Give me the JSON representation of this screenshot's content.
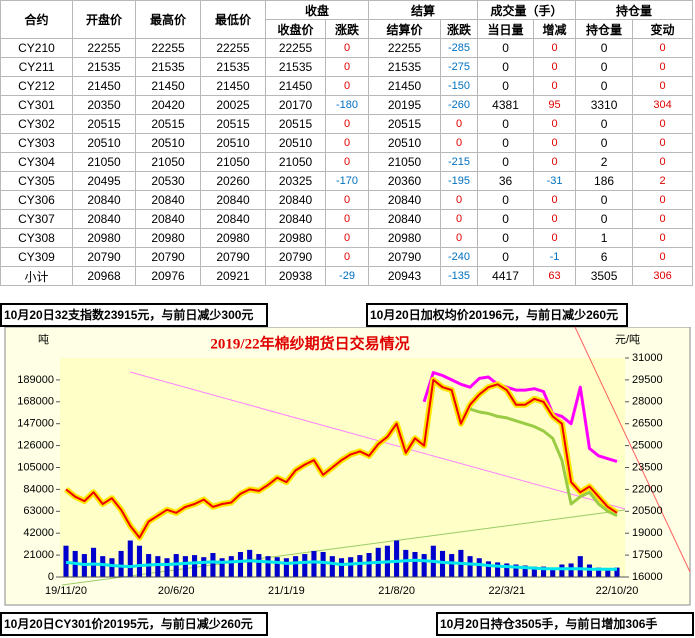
{
  "table": {
    "header_top": [
      "合约",
      "开盘价",
      "最高价",
      "最低价",
      "收盘",
      "结算",
      "成交量（手）",
      "持仓量"
    ],
    "header_sub": [
      "收盘价",
      "涨跌",
      "结算价",
      "涨跌",
      "当日量",
      "增减",
      "持仓量",
      "变动"
    ],
    "rows": [
      [
        "CY210",
        22255,
        22255,
        22255,
        22255,
        0,
        22255,
        -285,
        0,
        0,
        0,
        0
      ],
      [
        "CY211",
        21535,
        21535,
        21535,
        21535,
        0,
        21535,
        -275,
        0,
        0,
        0,
        0
      ],
      [
        "CY212",
        21450,
        21450,
        21450,
        21450,
        0,
        21450,
        -150,
        0,
        0,
        0,
        0
      ],
      [
        "CY301",
        20350,
        20420,
        20025,
        20170,
        -180,
        20195,
        -260,
        4381,
        95,
        3310,
        304
      ],
      [
        "CY302",
        20515,
        20515,
        20515,
        20515,
        0,
        20515,
        0,
        0,
        0,
        0,
        0
      ],
      [
        "CY303",
        20510,
        20510,
        20510,
        20510,
        0,
        20510,
        0,
        0,
        0,
        0,
        0
      ],
      [
        "CY304",
        21050,
        21050,
        21050,
        21050,
        0,
        21050,
        -215,
        0,
        0,
        2,
        0
      ],
      [
        "CY305",
        20495,
        20530,
        20260,
        20325,
        -170,
        20360,
        -195,
        36,
        -31,
        186,
        2
      ],
      [
        "CY306",
        20840,
        20840,
        20840,
        20840,
        0,
        20840,
        0,
        0,
        0,
        0,
        0
      ],
      [
        "CY307",
        20840,
        20840,
        20840,
        20840,
        0,
        20840,
        0,
        0,
        0,
        0,
        0
      ],
      [
        "CY308",
        20980,
        20980,
        20980,
        20980,
        0,
        20980,
        0,
        0,
        0,
        1,
        0
      ],
      [
        "CY309",
        20790,
        20790,
        20790,
        20790,
        0,
        20790,
        -240,
        0,
        -1,
        6,
        0
      ],
      [
        "小计",
        20968,
        20976,
        20921,
        20938,
        -29,
        20943,
        -135,
        4417,
        63,
        3505,
        306
      ]
    ]
  },
  "notes": [
    "10月20日32支指数23915元，与前日减少300元",
    "10月20日加权均价20196元，与前日减少260元",
    "10月20日CY301价20195元，与前日减少260元",
    "10月20日持仓3505手，与前日增加306手"
  ],
  "chart_data": {
    "type": "line",
    "title": "2019/22年棉纱期货日交易情况",
    "y_label": "吨",
    "y2_label": "元/吨",
    "categories": [
      "19/11/20",
      null,
      null,
      null,
      null,
      null,
      null,
      null,
      null,
      null,
      null,
      null,
      "20/6/20",
      null,
      null,
      null,
      null,
      null,
      null,
      null,
      null,
      null,
      null,
      null,
      "21/1/19",
      null,
      null,
      null,
      null,
      null,
      null,
      null,
      null,
      null,
      null,
      null,
      "21/8/20",
      null,
      null,
      null,
      null,
      null,
      null,
      null,
      null,
      null,
      null,
      null,
      "22/3/21",
      null,
      null,
      null,
      null,
      null,
      null,
      null,
      null,
      null,
      null,
      null,
      "22/10/20"
    ],
    "ylim": [
      0,
      210000
    ],
    "yticks": [
      0,
      21000,
      42000,
      63000,
      84000,
      105000,
      126000,
      147000,
      168000,
      189000
    ],
    "y2lim": [
      16000,
      31000
    ],
    "y2ticks": [
      16000,
      17500,
      19000,
      20500,
      22000,
      23500,
      25000,
      26500,
      28000,
      29500,
      31000
    ],
    "series": [
      {
        "type": "bar",
        "axis": "y",
        "color": "#0000cc",
        "values": [
          30000,
          25000,
          22000,
          28000,
          20000,
          18000,
          25000,
          35000,
          30000,
          22000,
          20000,
          18000,
          22000,
          20000,
          21000,
          19000,
          23000,
          18000,
          20000,
          24000,
          26000,
          22000,
          20000,
          19000,
          18000,
          20000,
          22000,
          25000,
          24000,
          20000,
          18000,
          19000,
          21000,
          23000,
          28000,
          30000,
          35000,
          26000,
          24000,
          22000,
          30000,
          25000,
          22000,
          26000,
          20000,
          18000,
          15000,
          14000,
          13000,
          12000,
          11000,
          10000,
          10000,
          9000,
          12000,
          13000,
          20000,
          12000,
          9000,
          8000,
          9000
        ]
      },
      {
        "type": "line",
        "axis": "y",
        "color": "#00e5ee",
        "values": [
          14000,
          13000,
          12000,
          12500,
          12000,
          11000,
          10500,
          10000,
          11000,
          11500,
          12000,
          12000,
          12500,
          13000,
          13500,
          14000,
          14500,
          14000,
          14500,
          15000,
          15500,
          15000,
          14500,
          14000,
          13000,
          13500,
          14000,
          14500,
          14000,
          13000,
          12000,
          12500,
          13000,
          13500,
          14000,
          14500,
          15000,
          15500,
          16000,
          15500,
          15000,
          14000,
          13500,
          13000,
          12500,
          12000,
          11000,
          10500,
          10000,
          9500,
          9000,
          8500,
          8000,
          8000,
          8000,
          8000,
          8000,
          7500,
          7500,
          7500,
          7500
        ]
      },
      {
        "type": "line",
        "axis": "y2",
        "color": "#ff00ff",
        "values": [
          null,
          null,
          null,
          null,
          null,
          null,
          null,
          null,
          null,
          null,
          null,
          null,
          null,
          null,
          null,
          null,
          null,
          null,
          null,
          null,
          null,
          null,
          null,
          null,
          null,
          null,
          null,
          null,
          null,
          null,
          null,
          null,
          null,
          null,
          null,
          null,
          null,
          null,
          null,
          28000,
          30000,
          29800,
          29500,
          29200,
          29000,
          29600,
          29700,
          29200,
          29000,
          28800,
          28800,
          28900,
          28700,
          27200,
          27000,
          26500,
          29000,
          24800,
          24300,
          24100,
          23915
        ]
      },
      {
        "type": "line",
        "axis": "y2",
        "color": "#ee0000",
        "halo": "#ffe600",
        "values": [
          22000,
          21500,
          21200,
          21800,
          21000,
          21400,
          20600,
          19500,
          18700,
          19800,
          20200,
          20600,
          20400,
          20800,
          21000,
          21300,
          20800,
          21000,
          21100,
          21700,
          22000,
          21900,
          22300,
          22800,
          22500,
          23300,
          23700,
          24000,
          23000,
          23500,
          24000,
          24400,
          24600,
          24300,
          25100,
          25600,
          26500,
          24500,
          25500,
          25000,
          29500,
          29000,
          28800,
          26500,
          27800,
          28500,
          29000,
          29200,
          28800,
          27800,
          27800,
          28200,
          28000,
          27000,
          26500,
          22500,
          21800,
          22200,
          21500,
          20800,
          20400
        ]
      },
      {
        "type": "line",
        "axis": "y2",
        "color": "#99cc44",
        "values": [
          null,
          null,
          null,
          null,
          null,
          null,
          null,
          null,
          null,
          null,
          null,
          null,
          null,
          null,
          null,
          null,
          null,
          null,
          null,
          null,
          null,
          null,
          null,
          null,
          null,
          null,
          null,
          null,
          null,
          null,
          null,
          null,
          null,
          null,
          null,
          null,
          null,
          null,
          null,
          null,
          null,
          null,
          null,
          null,
          27500,
          27300,
          27200,
          27000,
          26900,
          26700,
          26500,
          26300,
          26000,
          25500,
          24000,
          21000,
          21500,
          21800,
          21000,
          20500,
          20200
        ]
      }
    ]
  }
}
